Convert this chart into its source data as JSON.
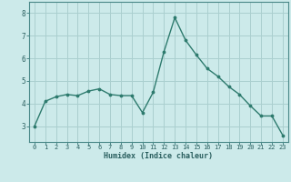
{
  "x": [
    0,
    1,
    2,
    3,
    4,
    5,
    6,
    7,
    8,
    9,
    10,
    11,
    12,
    13,
    14,
    15,
    16,
    17,
    18,
    19,
    20,
    21,
    22,
    23
  ],
  "y": [
    3.0,
    4.1,
    4.3,
    4.4,
    4.35,
    4.55,
    4.65,
    4.4,
    4.35,
    4.35,
    3.6,
    4.5,
    6.3,
    7.8,
    6.8,
    6.15,
    5.55,
    5.2,
    4.75,
    4.4,
    3.9,
    3.45,
    3.45,
    2.6
  ],
  "xlabel": "Humidex (Indice chaleur)",
  "ylim": [
    2.3,
    8.5
  ],
  "xlim": [
    -0.5,
    23.5
  ],
  "bg_color": "#cceaea",
  "line_color": "#2e7b6e",
  "grid_color": "#aacfcf",
  "tick_label_color": "#2a5f5f",
  "xlabel_color": "#2a5f5f",
  "axis_color": "#4a8888",
  "yticks": [
    3,
    4,
    5,
    6,
    7,
    8
  ],
  "xticks": [
    0,
    1,
    2,
    3,
    4,
    5,
    6,
    7,
    8,
    9,
    10,
    11,
    12,
    13,
    14,
    15,
    16,
    17,
    18,
    19,
    20,
    21,
    22,
    23
  ],
  "tick_fontsize": 5.0,
  "xlabel_fontsize": 6.0,
  "ytick_fontsize": 5.5
}
